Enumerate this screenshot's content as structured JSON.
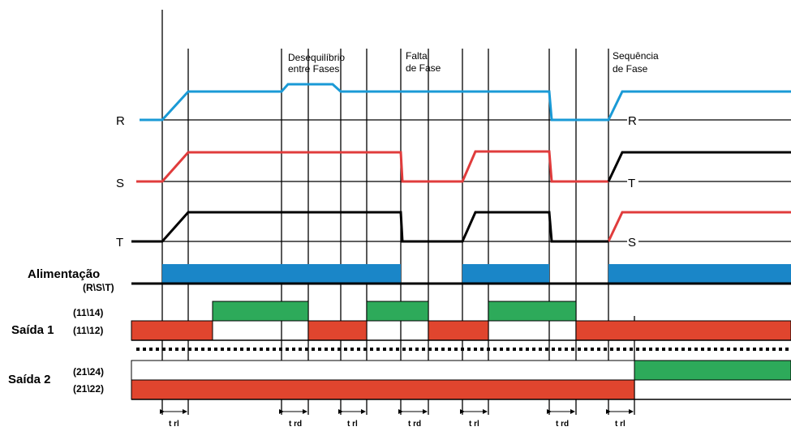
{
  "annotations": {
    "desequilibrio_line1": "Desequilíbrio",
    "desequilibrio_line2": "entre Fases",
    "falta_line1": "Falta",
    "falta_line2": "de Fase",
    "sequencia_line1": "Sequência",
    "sequencia_line2": "de Fase"
  },
  "phase_labels_left": {
    "r": "R",
    "s": "S",
    "t": "T"
  },
  "phase_labels_right": {
    "r": "R",
    "t": "T",
    "s": "S"
  },
  "rows": {
    "alimentacao_title": "Alimentação",
    "alimentacao_sub": "(R\\S\\T)",
    "saida1_title": "Saída 1",
    "saida1_no": "(11\\14)",
    "saida1_nc": "(11\\12)",
    "saida2_title": "Saída 2",
    "saida2_no": "(21\\24)",
    "saida2_nc": "(21\\22)"
  },
  "time_labels": [
    "t rl",
    "t rd",
    "t rl",
    "t rd",
    "t rl",
    "t rd",
    "t rl"
  ],
  "colors": {
    "phase_r": "#1a9ad6",
    "phase_s": "#e03c3c",
    "phase_t": "#000000",
    "supply_bar": "#1a86c8",
    "relay_energized": "#2daa5a",
    "relay_rest": "#e0452e"
  }
}
